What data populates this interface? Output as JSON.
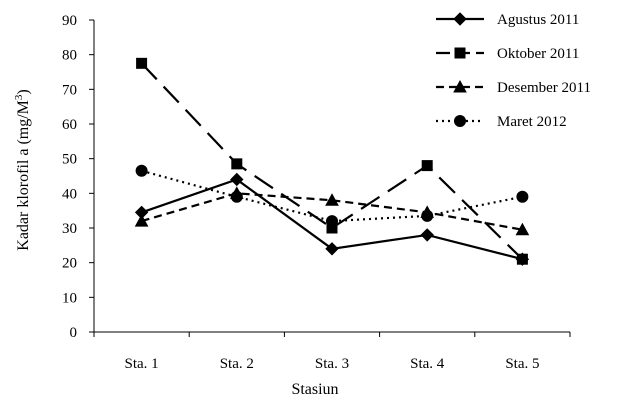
{
  "chart_data": {
    "type": "line",
    "xlabel": "Stasiun",
    "ylabel": {
      "prefix": "Kadar klorofil a (mg/M",
      "superscript": "3",
      "suffix": ")"
    },
    "categories": [
      "Sta. 1",
      "Sta. 2",
      "Sta. 3",
      "Sta. 4",
      "Sta. 5"
    ],
    "ylim": [
      0,
      90
    ],
    "yticks": [
      0,
      10,
      20,
      30,
      40,
      50,
      60,
      70,
      80,
      90
    ],
    "grid": false,
    "legend_position": "top-right",
    "series": [
      {
        "name": "Agustus 2011",
        "values": [
          34.5,
          44,
          24,
          28,
          21
        ],
        "marker": "diamond",
        "line_style": "solid",
        "color": "#000000"
      },
      {
        "name": "Oktober 2011",
        "values": [
          77.5,
          48.5,
          30,
          48,
          21
        ],
        "marker": "square",
        "line_style": "long-dash",
        "color": "#000000"
      },
      {
        "name": "Desember 2011",
        "values": [
          32,
          40,
          38,
          34.5,
          29.5
        ],
        "marker": "triangle",
        "line_style": "short-dash",
        "color": "#000000"
      },
      {
        "name": "Maret 2012",
        "values": [
          46.5,
          39,
          32,
          33.5,
          39
        ],
        "marker": "circle",
        "line_style": "dotted",
        "color": "#000000"
      }
    ]
  }
}
